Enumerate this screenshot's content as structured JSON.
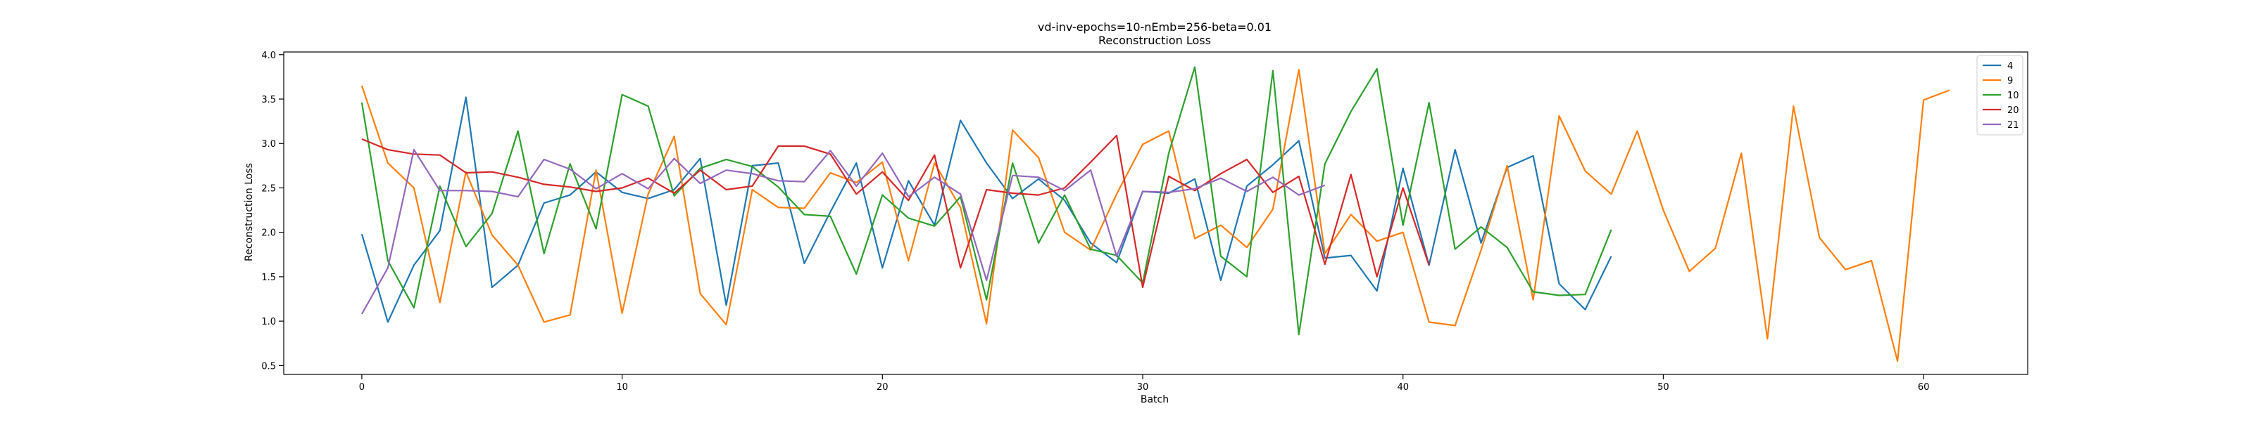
{
  "chart_data": {
    "type": "line",
    "title": "vd-inv-epochs=10-nEmb=256-beta=0.01",
    "subtitle": "Reconstruction Loss",
    "xlabel": "Batch",
    "ylabel": "Reconstruction Loss",
    "xlim": [
      -3,
      64
    ],
    "ylim": [
      0.4,
      4.03
    ],
    "xticks": [
      0,
      10,
      20,
      30,
      40,
      50,
      60
    ],
    "yticks": [
      0.5,
      1.0,
      1.5,
      2.0,
      2.5,
      3.0,
      3.5,
      4.0
    ],
    "ytick_labels": [
      "0.5",
      "1.0",
      "1.5",
      "2.0",
      "2.5",
      "3.0",
      "3.5",
      "4.0"
    ],
    "grid": false,
    "legend_position": "top-right",
    "series": [
      {
        "name": "4",
        "color": "#1f77b4",
        "x": [
          0,
          1,
          2,
          3,
          4,
          5,
          6,
          7,
          8,
          9,
          10,
          11,
          12,
          13,
          14,
          15,
          16,
          17,
          18,
          19,
          20,
          21,
          22,
          23,
          24,
          25,
          26,
          27,
          28,
          29,
          30,
          31,
          32,
          33,
          34,
          35,
          36,
          37,
          38,
          39,
          40,
          41,
          42,
          43,
          44,
          45,
          46,
          47,
          48
        ],
        "y": [
          1.98,
          0.99,
          1.63,
          2.02,
          3.52,
          1.38,
          1.63,
          2.33,
          2.42,
          2.68,
          2.45,
          2.38,
          2.48,
          2.83,
          1.18,
          2.75,
          2.78,
          1.65,
          2.23,
          2.78,
          1.6,
          2.58,
          2.08,
          3.26,
          2.78,
          2.38,
          2.6,
          2.36,
          1.88,
          1.66,
          2.46,
          2.44,
          2.6,
          1.46,
          2.52,
          2.76,
          3.03,
          1.71,
          1.74,
          1.34,
          2.72,
          1.63,
          2.93,
          1.88,
          2.73,
          2.86,
          1.42,
          1.13,
          1.73
        ]
      },
      {
        "name": "9",
        "color": "#ff7f0e",
        "x": [
          0,
          1,
          2,
          3,
          4,
          5,
          6,
          7,
          8,
          9,
          10,
          11,
          12,
          13,
          14,
          15,
          16,
          17,
          18,
          19,
          20,
          21,
          22,
          23,
          24,
          25,
          26,
          27,
          28,
          29,
          30,
          31,
          32,
          33,
          34,
          35,
          36,
          37,
          38,
          39,
          40,
          41,
          42,
          43,
          44,
          45,
          46,
          47,
          48,
          49,
          50,
          51,
          52,
          53,
          54,
          55,
          56,
          57,
          58,
          59,
          60,
          61
        ],
        "y": [
          3.65,
          2.78,
          2.5,
          1.21,
          2.68,
          1.97,
          1.63,
          0.99,
          1.07,
          2.7,
          1.09,
          2.43,
          3.08,
          1.31,
          0.96,
          2.48,
          2.28,
          2.27,
          2.67,
          2.56,
          2.79,
          1.68,
          2.78,
          2.28,
          0.97,
          3.15,
          2.84,
          2.0,
          1.8,
          2.43,
          2.99,
          3.14,
          1.93,
          2.08,
          1.83,
          2.26,
          3.83,
          1.76,
          2.2,
          1.9,
          2.0,
          0.99,
          0.95,
          1.8,
          2.75,
          1.24,
          3.31,
          2.69,
          2.43,
          3.14,
          2.25,
          1.56,
          1.82,
          2.89,
          0.8,
          3.42,
          1.94,
          1.58,
          1.68,
          0.55,
          3.49,
          3.6
        ]
      },
      {
        "name": "10",
        "color": "#2ca02c",
        "x": [
          0,
          1,
          2,
          3,
          4,
          5,
          6,
          7,
          8,
          9,
          10,
          11,
          12,
          13,
          14,
          15,
          16,
          17,
          18,
          19,
          20,
          21,
          22,
          23,
          24,
          25,
          26,
          27,
          28,
          29,
          30,
          31,
          32,
          33,
          34,
          35,
          36,
          37,
          38,
          39,
          40,
          41,
          42,
          43,
          44,
          45,
          46,
          47,
          48
        ],
        "y": [
          3.46,
          1.68,
          1.15,
          2.52,
          1.84,
          2.21,
          3.14,
          1.76,
          2.77,
          2.04,
          3.55,
          3.42,
          2.41,
          2.72,
          2.82,
          2.74,
          2.51,
          2.2,
          2.18,
          1.53,
          2.42,
          2.16,
          2.07,
          2.4,
          1.24,
          2.78,
          1.88,
          2.42,
          1.81,
          1.74,
          1.43,
          2.89,
          3.86,
          1.73,
          1.5,
          3.82,
          0.85,
          2.77,
          3.36,
          3.84,
          2.08,
          3.46,
          1.81,
          2.06,
          1.83,
          1.33,
          1.29,
          1.3,
          2.03
        ]
      },
      {
        "name": "20",
        "color": "#d62728",
        "x": [
          0,
          1,
          2,
          3,
          4,
          5,
          6,
          7,
          8,
          9,
          10,
          11,
          12,
          13,
          14,
          15,
          16,
          17,
          18,
          19,
          20,
          21,
          22,
          23,
          24,
          25,
          26,
          27,
          28,
          29,
          30,
          31,
          32,
          33,
          34,
          35,
          36,
          37,
          38,
          39,
          40,
          41
        ],
        "y": [
          3.05,
          2.93,
          2.88,
          2.87,
          2.67,
          2.68,
          2.62,
          2.54,
          2.51,
          2.46,
          2.5,
          2.61,
          2.44,
          2.7,
          2.48,
          2.52,
          2.97,
          2.97,
          2.88,
          2.43,
          2.68,
          2.36,
          2.87,
          1.6,
          2.48,
          2.44,
          2.42,
          2.5,
          2.79,
          3.09,
          1.38,
          2.63,
          2.47,
          2.66,
          2.82,
          2.45,
          2.63,
          1.64,
          2.65,
          1.5,
          2.5,
          1.63
        ]
      },
      {
        "name": "21",
        "color": "#9467bd",
        "x": [
          0,
          1,
          2,
          3,
          4,
          5,
          6,
          7,
          8,
          9,
          10,
          11,
          12,
          13,
          14,
          15,
          16,
          17,
          18,
          19,
          20,
          21,
          22,
          23,
          24,
          25,
          26,
          27,
          28,
          29,
          30,
          31,
          32,
          33,
          34,
          35,
          36,
          37
        ],
        "y": [
          1.08,
          1.6,
          2.93,
          2.47,
          2.47,
          2.46,
          2.4,
          2.82,
          2.71,
          2.49,
          2.66,
          2.49,
          2.83,
          2.55,
          2.7,
          2.66,
          2.58,
          2.57,
          2.92,
          2.52,
          2.89,
          2.4,
          2.62,
          2.43,
          1.46,
          2.64,
          2.62,
          2.47,
          2.7,
          1.73,
          2.46,
          2.45,
          2.49,
          2.61,
          2.46,
          2.62,
          2.42,
          2.53
        ]
      }
    ]
  }
}
